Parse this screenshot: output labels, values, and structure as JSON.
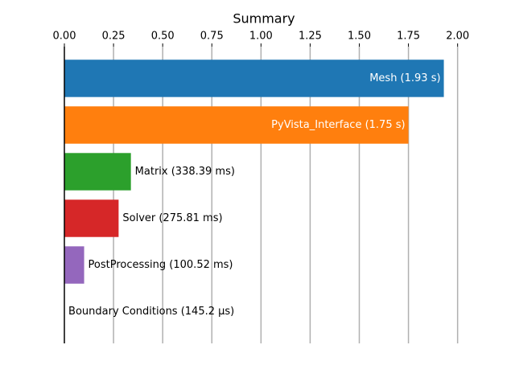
{
  "chart_data": {
    "type": "barh",
    "title": "Summary",
    "values": [
      1.93,
      1.75,
      0.33839,
      0.27581,
      0.10052,
      0.0001452
    ],
    "value_labels": [
      "Mesh (1.93 s)",
      "PyVista_Interface (1.75 s)",
      "Matrix (338.39 ms)",
      "Solver (275.81 ms)",
      "PostProcessing (100.52 ms)",
      "Boundary Conditions (145.2 µs)"
    ],
    "colors": [
      "#1f77b4",
      "#ff7f0e",
      "#2ca02c",
      "#d62728",
      "#9467bd",
      "#8c564b"
    ],
    "xlim": [
      0,
      2.03
    ],
    "xticks": [
      {
        "value": 0,
        "label": "0.00"
      },
      {
        "value": 0.25,
        "label": "0.25"
      },
      {
        "value": 0.5,
        "label": "0.50"
      },
      {
        "value": 0.75,
        "label": "0.75"
      },
      {
        "value": 1,
        "label": "1.00"
      },
      {
        "value": 1.25,
        "label": "1.25"
      },
      {
        "value": 1.5,
        "label": "1.50"
      },
      {
        "value": 1.75,
        "label": "1.75"
      },
      {
        "value": 2,
        "label": "2.00"
      }
    ],
    "grid": true
  }
}
